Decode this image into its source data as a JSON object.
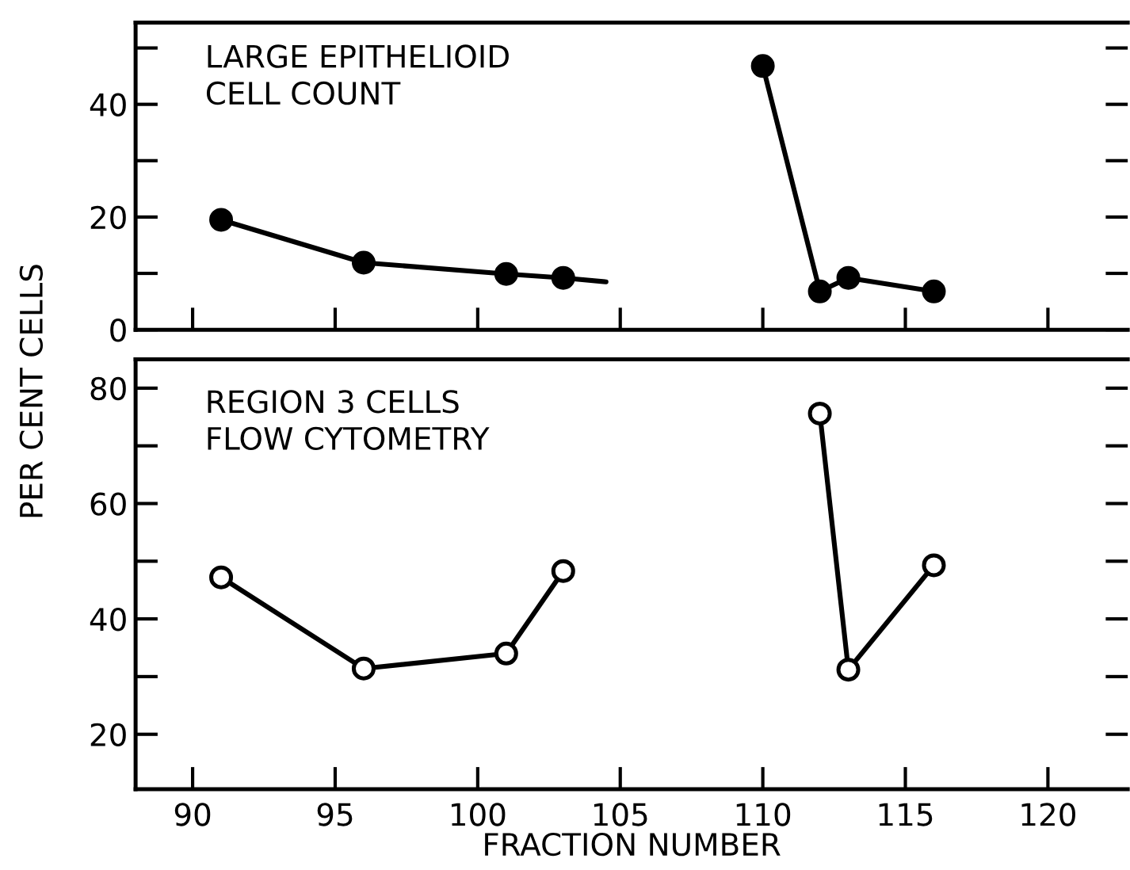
{
  "chart_data": [
    {
      "type": "line",
      "title": "LARGE EPITHELIOID\nCELL COUNT",
      "ylabel": "PER CENT CELLS",
      "xlim": [
        88,
        122.8
      ],
      "xticks": [
        {
          "value": 90,
          "label": null
        },
        {
          "value": 95,
          "label": null
        },
        {
          "value": 100,
          "label": null
        },
        {
          "value": 105,
          "label": null
        },
        {
          "value": 110,
          "label": null
        },
        {
          "value": 115,
          "label": null
        },
        {
          "value": 120,
          "label": null
        }
      ],
      "ylim": [
        0,
        54.5
      ],
      "yticks": [
        0,
        {
          "value": 10,
          "label": null
        },
        20,
        {
          "value": 30,
          "label": null
        },
        40,
        {
          "value": 50,
          "label": null
        }
      ],
      "tick_labels": "y",
      "grid": false,
      "legend": false,
      "series": [
        {
          "color": "#000000",
          "marker": "circle",
          "x": [
            91,
            96,
            101,
            103
          ],
          "values": [
            19.5,
            11.9,
            9.9,
            9.2
          ]
        },
        {
          "color": "#000000",
          "marker": "none",
          "x": [
            103,
            104.5
          ],
          "values": [
            9.2,
            8.5
          ]
        },
        {
          "color": "#000000",
          "marker": "circle",
          "x": [
            110,
            112,
            113,
            116
          ],
          "values": [
            46.8,
            6.8,
            9.2,
            6.8
          ]
        }
      ]
    },
    {
      "type": "line",
      "title": "REGION 3 CELLS\nFLOW CYTOMETRY",
      "xlabel": "FRACTION NUMBER",
      "xlim": [
        88,
        122.8
      ],
      "xticks": [
        90,
        95,
        100,
        105,
        110,
        115,
        120
      ],
      "ylim": [
        10.5,
        85
      ],
      "yticks": [
        20,
        {
          "value": 30,
          "label": null
        },
        40,
        {
          "value": 50,
          "label": null
        },
        60,
        {
          "value": 70,
          "label": null
        },
        80
      ],
      "grid": false,
      "legend": false,
      "series": [
        {
          "color": "#000000",
          "marker": "circle",
          "x": [
            91,
            96,
            101,
            103
          ],
          "values": [
            47.2,
            31.4,
            34.0,
            48.3
          ]
        },
        {
          "color": "#000000",
          "marker": "circle",
          "x": [
            112,
            113,
            116
          ],
          "values": [
            75.6,
            31.2,
            49.3
          ]
        }
      ]
    }
  ]
}
